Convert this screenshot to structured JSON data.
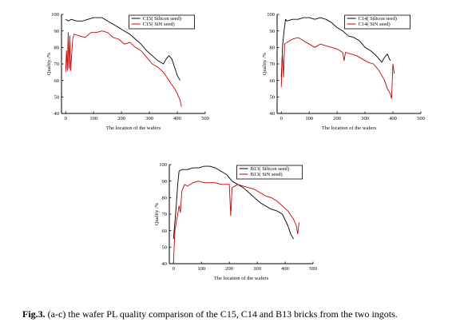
{
  "figure": {
    "caption_label": "Fig.3.",
    "caption_text": " (a-c) the wafer PL quality comparison of the C15, C14 and B13 bricks from the two ingots."
  },
  "chart_data": [
    {
      "type": "line",
      "xlabel": "The location of the wafers",
      "ylabel": "Quality /%",
      "xlim": [
        -15,
        500
      ],
      "ylim": [
        40,
        100
      ],
      "xticks": [
        0,
        100,
        200,
        300,
        400,
        500
      ],
      "yticks": [
        40,
        50,
        60,
        70,
        80,
        90,
        100
      ],
      "legend_position": "top-right",
      "series": [
        {
          "name": "C15( Silicon seed)",
          "color": "#000000",
          "x": [
            0,
            10,
            20,
            40,
            60,
            80,
            100,
            130,
            150,
            170,
            190,
            210,
            230,
            250,
            270,
            290,
            310,
            330,
            350,
            360,
            370,
            380,
            390,
            400,
            410
          ],
          "y": [
            97,
            96,
            97,
            96,
            96,
            97,
            98,
            98,
            96,
            94,
            92,
            90,
            88,
            85,
            82,
            78,
            75,
            72,
            70,
            73,
            75,
            73,
            68,
            63,
            60
          ]
        },
        {
          "name": "C15( SiN seed)",
          "color": "#cc0000",
          "x": [
            0,
            3,
            6,
            9,
            12,
            15,
            18,
            21,
            25,
            30,
            50,
            70,
            90,
            110,
            130,
            150,
            170,
            190,
            210,
            230,
            250,
            270,
            290,
            310,
            330,
            350,
            370,
            390,
            400,
            410,
            415
          ],
          "y": [
            65,
            78,
            66,
            89,
            67,
            87,
            66,
            75,
            85,
            88,
            87,
            86,
            89,
            89,
            90,
            89,
            86,
            85,
            82,
            83,
            80,
            78,
            74,
            70,
            68,
            65,
            60,
            55,
            52,
            48,
            44
          ]
        }
      ]
    },
    {
      "type": "line",
      "xlabel": "The location of the wafers",
      "ylabel": "Quality /%",
      "xlim": [
        -15,
        500
      ],
      "ylim": [
        40,
        100
      ],
      "xticks": [
        0,
        100,
        200,
        300,
        400,
        500
      ],
      "yticks": [
        40,
        50,
        60,
        70,
        80,
        90,
        100
      ],
      "legend_position": "top-right",
      "series": [
        {
          "name": "C14( Silicon seed)",
          "color": "#000000",
          "x": [
            0,
            5,
            10,
            15,
            20,
            40,
            60,
            80,
            100,
            120,
            140,
            160,
            180,
            200,
            220,
            240,
            260,
            280,
            300,
            320,
            340,
            350,
            360,
            370,
            380,
            390
          ],
          "y": [
            62,
            82,
            90,
            97,
            96,
            97,
            97,
            98,
            98,
            97,
            98,
            97,
            95,
            92,
            90,
            87,
            86,
            84,
            80,
            78,
            75,
            73,
            71,
            74,
            76,
            72
          ]
        },
        {
          "name": "C14( SiN seed)",
          "color": "#cc0000",
          "x": [
            0,
            4,
            8,
            12,
            20,
            40,
            60,
            80,
            100,
            120,
            140,
            160,
            180,
            200,
            220,
            225,
            230,
            250,
            270,
            290,
            310,
            330,
            350,
            370,
            380,
            390,
            395,
            400,
            405
          ],
          "y": [
            56,
            77,
            62,
            82,
            83,
            85,
            86,
            84,
            82,
            80,
            82,
            81,
            80,
            79,
            77,
            72,
            77,
            76,
            75,
            73,
            71,
            70,
            66,
            60,
            55,
            52,
            49,
            70,
            64
          ]
        }
      ]
    },
    {
      "type": "line",
      "xlabel": "The location of the wafers",
      "ylabel": "Quality /%",
      "xlim": [
        -15,
        500
      ],
      "ylim": [
        40,
        100
      ],
      "xticks": [
        0,
        100,
        200,
        300,
        400,
        500
      ],
      "yticks": [
        40,
        50,
        60,
        70,
        80,
        90,
        100
      ],
      "legend_position": "top-right",
      "series": [
        {
          "name": "B13( Silicon seed)",
          "color": "#000000",
          "x": [
            0,
            5,
            10,
            15,
            20,
            30,
            50,
            70,
            90,
            110,
            130,
            150,
            170,
            190,
            210,
            230,
            250,
            270,
            290,
            310,
            330,
            350,
            370,
            390,
            410,
            420,
            430
          ],
          "y": [
            55,
            65,
            75,
            88,
            96,
            97,
            97,
            98,
            98,
            99,
            99,
            98,
            96,
            94,
            90,
            88,
            86,
            83,
            80,
            77,
            75,
            73,
            72,
            70,
            63,
            58,
            55
          ]
        },
        {
          "name": "B13( SiN seed)",
          "color": "#cc0000",
          "x": [
            0,
            5,
            10,
            15,
            20,
            25,
            30,
            40,
            50,
            70,
            90,
            110,
            130,
            150,
            170,
            190,
            200,
            205,
            210,
            230,
            250,
            270,
            290,
            310,
            330,
            350,
            370,
            390,
            410,
            430,
            440,
            445,
            450
          ],
          "y": [
            40,
            60,
            65,
            70,
            75,
            71,
            84,
            88,
            87,
            89,
            90,
            89,
            89,
            89,
            88,
            88,
            88,
            69,
            86,
            88,
            87,
            86,
            85,
            83,
            81,
            80,
            78,
            75,
            72,
            67,
            63,
            58,
            65
          ]
        }
      ]
    }
  ]
}
